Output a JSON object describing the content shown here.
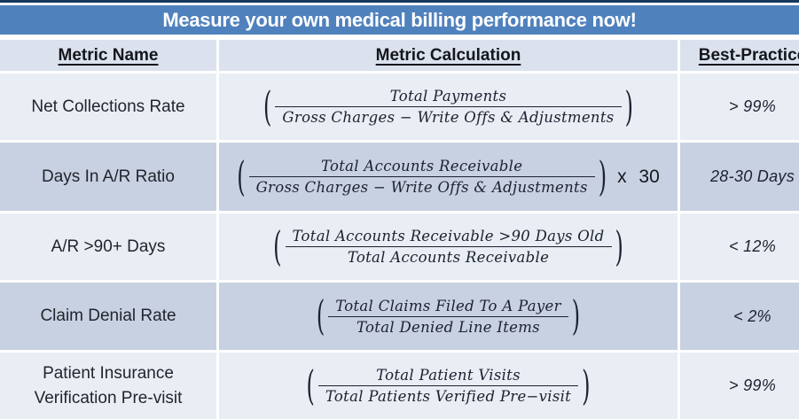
{
  "title": "Measure your own medical billing performance now!",
  "colors": {
    "banner_blue": "#4f81bd",
    "top_rule_navy": "#17375d",
    "header_row_bg": "#dbe2ee",
    "row_light_bg": "#e9edf4",
    "row_dark_bg": "#c8d1e1",
    "text": "#1c2130"
  },
  "table": {
    "headers": [
      "Metric Name",
      "Metric Calculation",
      "Best-Practice"
    ],
    "rows": [
      {
        "metric": "Net Collections Rate",
        "numerator": "Total Payments",
        "denominator": "Gross Charges − Write Offs & Adjustments",
        "suffix": "",
        "best_practice": "> 99%"
      },
      {
        "metric": "Days In A/R Ratio",
        "numerator": "Total Accounts Receivable",
        "denominator": "Gross Charges − Write Offs & Adjustments",
        "suffix": "x 30",
        "best_practice": "28-30 Days"
      },
      {
        "metric": "A/R >90+ Days",
        "numerator": "Total Accounts Receivable >90 Days Old",
        "denominator": "Total Accounts Receivable",
        "suffix": "",
        "best_practice": "< 12%"
      },
      {
        "metric": "Claim Denial Rate",
        "numerator": "Total Claims Filed To A Payer",
        "denominator": "Total Denied Line Items",
        "suffix": "",
        "best_practice": "< 2%"
      },
      {
        "metric": "Patient Insurance Verification Pre-visit",
        "numerator": "Total Patient Visits",
        "denominator": "Total Patients Verified Pre−visit",
        "suffix": "",
        "best_practice": "> 99%"
      }
    ]
  }
}
